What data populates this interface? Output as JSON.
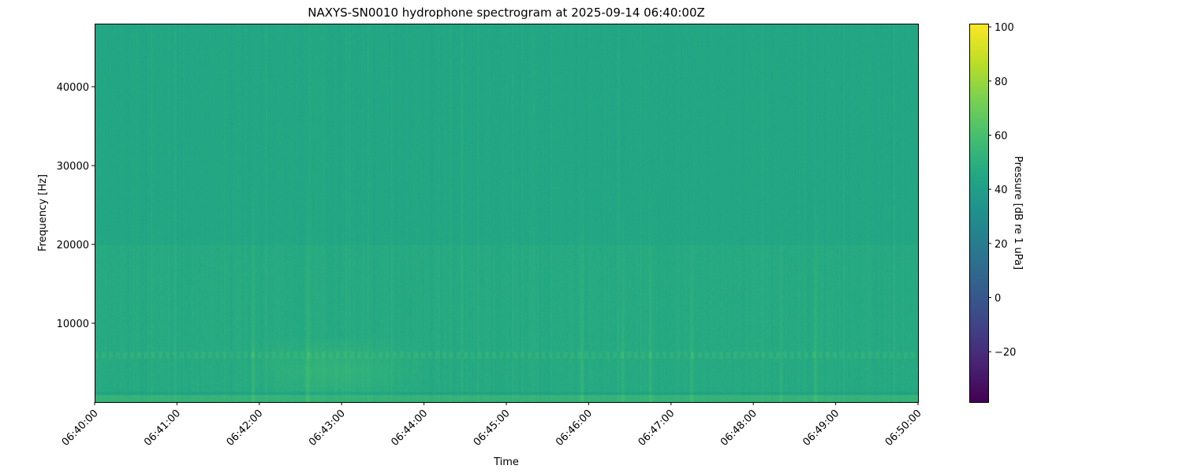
{
  "chart_data": {
    "type": "heatmap",
    "title": "NAXYS-SN0010 hydrophone spectrogram at 2025-09-14 06:40:00Z",
    "xlabel": "Time",
    "ylabel": "Frequency [Hz]",
    "x_ticks": [
      "06:40:00",
      "06:41:00",
      "06:42:00",
      "06:43:00",
      "06:44:00",
      "06:45:00",
      "06:46:00",
      "06:47:00",
      "06:48:00",
      "06:49:00",
      "06:50:00"
    ],
    "xlim": [
      "06:40:00",
      "06:50:00"
    ],
    "y_ticks": [
      10000,
      20000,
      30000,
      40000
    ],
    "ylim": [
      0,
      48000
    ],
    "colorbar": {
      "label": "Pressure [dB re 1 uPa]",
      "ticks": [
        -20,
        0,
        20,
        40,
        60,
        80,
        100
      ],
      "range": [
        -38.6,
        101.2
      ],
      "colormap": "viridis"
    },
    "features": {
      "background_level_db": 45,
      "tonal_band_hz": 6000,
      "low_freq_band_hz": 500,
      "broadband_event_time": "06:42:55",
      "broadband_event_band_hz": [
        1000,
        8000
      ],
      "transient_times": [
        "06:41:55",
        "06:42:35",
        "06:45:55",
        "06:46:25",
        "06:46:45",
        "06:47:15",
        "06:48:20",
        "06:48:45"
      ]
    },
    "grid": false
  }
}
